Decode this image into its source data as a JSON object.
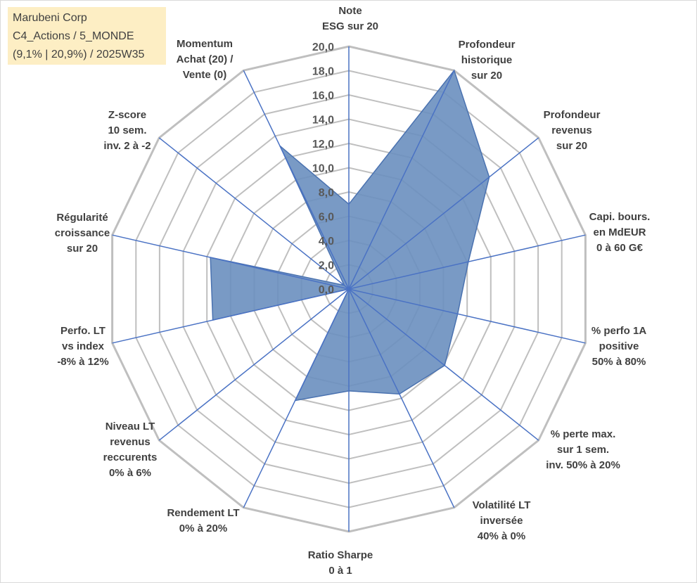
{
  "info": {
    "line1": "Marubeni Corp",
    "line2": "C4_Actions / 5_MONDE",
    "line3": "(9,1% | 20,9%) / 2025W35"
  },
  "chart_data": {
    "type": "radar",
    "ylim": [
      0,
      20
    ],
    "tick_labels": [
      "0,0",
      "2,0",
      "4,0",
      "6,0",
      "8,0",
      "10,0",
      "12,0",
      "14,0",
      "16,0",
      "18,0",
      "20,0"
    ],
    "categories": [
      "Note ESG sur 20",
      "Profondeur historique sur 20",
      "Profondeur revenus sur 20",
      "Capi. bours. en MdEUR 0 à 60 G€",
      "% perfo 1A positive 50% à 80%",
      "% perte max. sur 1 sem. inv. 50% à 20%",
      "Volatilité LT inversée 40% à 0%",
      "Ratio Sharpe 0 à 1",
      "Rendement LT 0% à 20%",
      "Niveau LT revenus reccurents 0% à 6%",
      "Perfo. LT vs index -8% à 12%",
      "Régularité croissance sur 20",
      "Z-score 10 sem. inv. 2 à -2",
      "Momentum Achat (20) / Vente (0)"
    ],
    "axis_label_lines": [
      [
        "Note",
        "ESG sur 20"
      ],
      [
        "Profondeur",
        "historique",
        "sur 20"
      ],
      [
        "Profondeur",
        "revenus",
        "sur 20"
      ],
      [
        "Capi. bours.",
        "en MdEUR",
        "0 à 60 G€"
      ],
      [
        "% perfo 1A",
        "positive",
        "50% à 80%"
      ],
      [
        "% perte max.",
        "sur 1 sem.",
        "inv. 50% à 20%"
      ],
      [
        "Volatilité LT",
        "inversée",
        "40% à 0%"
      ],
      [
        "Ratio Sharpe",
        "0 à 1"
      ],
      [
        "Rendement LT",
        "0% à 20%"
      ],
      [
        "Niveau LT",
        "revenus",
        "reccurents",
        "0% à 6%"
      ],
      [
        "Perfo. LT",
        "vs index",
        "-8% à 12%"
      ],
      [
        "Régularité",
        "croissance",
        "sur 20"
      ],
      [
        "Z-score",
        "10 sem.",
        "inv. 2 à -2"
      ],
      [
        "Momentum",
        "Achat (20) /",
        "Vente (0)"
      ]
    ],
    "series": [
      {
        "values": [
          7.0,
          20.0,
          14.8,
          10.1,
          9.2,
          10.1,
          9.6,
          8.4,
          10.2,
          0.0,
          11.5,
          11.7,
          0.5,
          13.1
        ]
      }
    ],
    "colors": {
      "fill": "#6a8fbf",
      "stroke": "#4a72b0",
      "axis": "#4a72c4",
      "grid": "#bfbfbf"
    },
    "grid": true,
    "legend": "none"
  }
}
